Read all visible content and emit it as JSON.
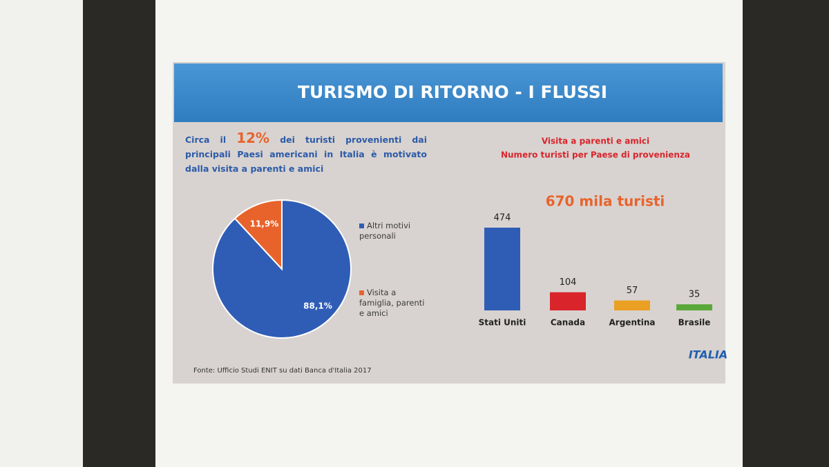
{
  "header": {
    "title": "TURISMO DI RITORNO - I FLUSSI"
  },
  "intro": {
    "before": "Circa il",
    "highlight": "12%",
    "after": "dei turisti provenienti dai principali Paesi americani in Italia è motivato dalla visita a parenti e amici"
  },
  "source": "Fonte: Ufficio Studi ENIT su dati Banca d'Italia 2017",
  "logo": "ITALIA",
  "chart_data": [
    {
      "type": "pie",
      "categories": [
        "Altri motivi personali",
        "Visita a famiglia, parenti e amici"
      ],
      "values": [
        88.1,
        11.9
      ],
      "value_labels": [
        "88,1%",
        "11,9%"
      ],
      "colors": [
        "#2f5db6",
        "#e8632b"
      ]
    },
    {
      "type": "bar",
      "title": "Visita a parenti e amici",
      "subtitle": "Numero turisti per Paese di provenienza",
      "annotation": "670 mila turisti",
      "categories": [
        "Stati Uniti",
        "Canada",
        "Argentina",
        "Brasile"
      ],
      "values": [
        474,
        104,
        57,
        35
      ],
      "colors": [
        "#2f5db6",
        "#d9242b",
        "#eaa023",
        "#5aa83a"
      ]
    }
  ]
}
